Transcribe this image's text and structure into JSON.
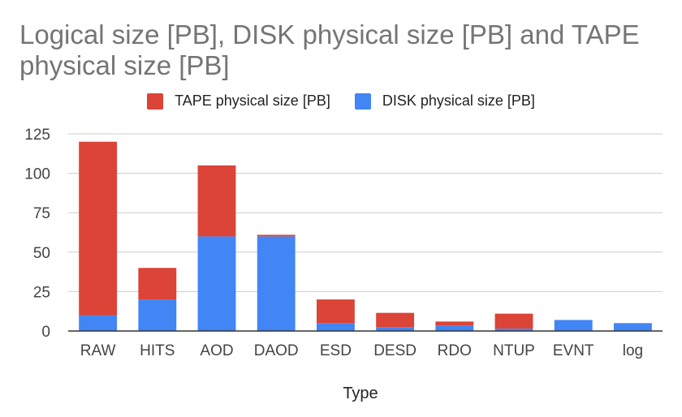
{
  "chart_data": {
    "type": "bar",
    "stacked": true,
    "title": "Logical size [PB], DISK physical size [PB] and TAPE physical size [PB]",
    "xlabel": "Type",
    "ylabel": "",
    "ylim": [
      0,
      125
    ],
    "yticks": [
      0,
      25,
      50,
      75,
      100,
      125
    ],
    "grid": true,
    "legend_position": "top",
    "categories": [
      "RAW",
      "HITS",
      "AOD",
      "DAOD",
      "ESD",
      "DESD",
      "RDO",
      "NTUP",
      "EVNT",
      "log"
    ],
    "series": [
      {
        "name": "DISK physical size [PB]",
        "color": "#4285f4",
        "values": [
          10,
          20,
          60,
          60,
          5,
          2.5,
          3.5,
          1.5,
          7,
          5
        ]
      },
      {
        "name": "TAPE physical size [PB]",
        "color": "#db4437",
        "values": [
          110,
          20,
          45,
          1,
          15,
          9,
          2.5,
          9.5,
          0,
          0
        ]
      }
    ],
    "legend_order": [
      1,
      0
    ]
  }
}
